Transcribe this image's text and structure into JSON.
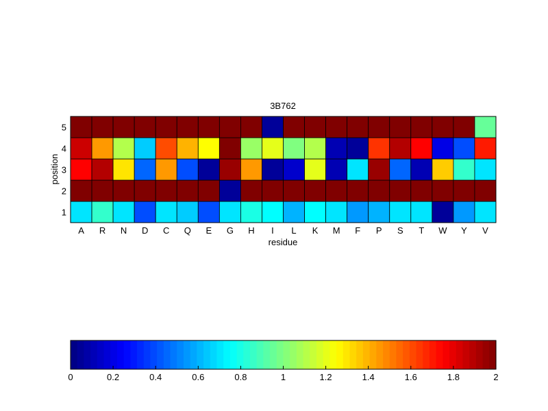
{
  "chart_data": [
    {
      "type": "heatmap",
      "title": "3B762",
      "xlabel": "residue",
      "ylabel": "position",
      "x_categories": [
        "A",
        "R",
        "N",
        "D",
        "C",
        "Q",
        "E",
        "G",
        "H",
        "I",
        "L",
        "K",
        "M",
        "F",
        "P",
        "S",
        "T",
        "W",
        "Y",
        "V"
      ],
      "y_categories": [
        "1",
        "2",
        "3",
        "4",
        "5"
      ],
      "values": [
        [
          0.7,
          0.85,
          0.7,
          0.4,
          0.7,
          0.65,
          0.4,
          0.7,
          0.8,
          0.75,
          0.6,
          0.75,
          0.7,
          0.55,
          0.6,
          0.7,
          0.7,
          0.05,
          0.55,
          0.7
        ],
        [
          2.0,
          2.0,
          2.0,
          2.0,
          2.0,
          2.0,
          2.0,
          0.05,
          2.0,
          2.0,
          2.0,
          2.0,
          2.0,
          2.0,
          2.0,
          2.0,
          2.0,
          2.0,
          2.0,
          2.0
        ],
        [
          1.75,
          1.9,
          1.3,
          0.45,
          1.45,
          0.4,
          0.05,
          1.95,
          1.45,
          0.05,
          0.15,
          1.2,
          0.1,
          0.7,
          1.95,
          0.45,
          0.1,
          1.35,
          0.85,
          0.7
        ],
        [
          1.85,
          1.45,
          1.1,
          0.65,
          1.6,
          1.4,
          1.25,
          2.0,
          1.05,
          1.2,
          1.0,
          1.1,
          0.1,
          0.05,
          1.65,
          1.9,
          1.75,
          0.2,
          0.4,
          1.7
        ],
        [
          2.0,
          2.0,
          2.0,
          2.0,
          2.0,
          2.0,
          2.0,
          2.0,
          2.0,
          0.05,
          2.0,
          2.0,
          2.0,
          2.0,
          2.0,
          2.0,
          2.0,
          2.0,
          2.0,
          0.95
        ]
      ],
      "value_range": [
        0,
        2
      ],
      "colormap": "jet",
      "grid": false
    },
    {
      "type": "colorbar",
      "orientation": "horizontal",
      "range": [
        0,
        2
      ],
      "ticks": [
        "0",
        "0.2",
        "0.4",
        "0.6",
        "0.8",
        "1",
        "1.2",
        "1.4",
        "1.6",
        "1.8",
        "2"
      ],
      "levels": 64
    }
  ]
}
